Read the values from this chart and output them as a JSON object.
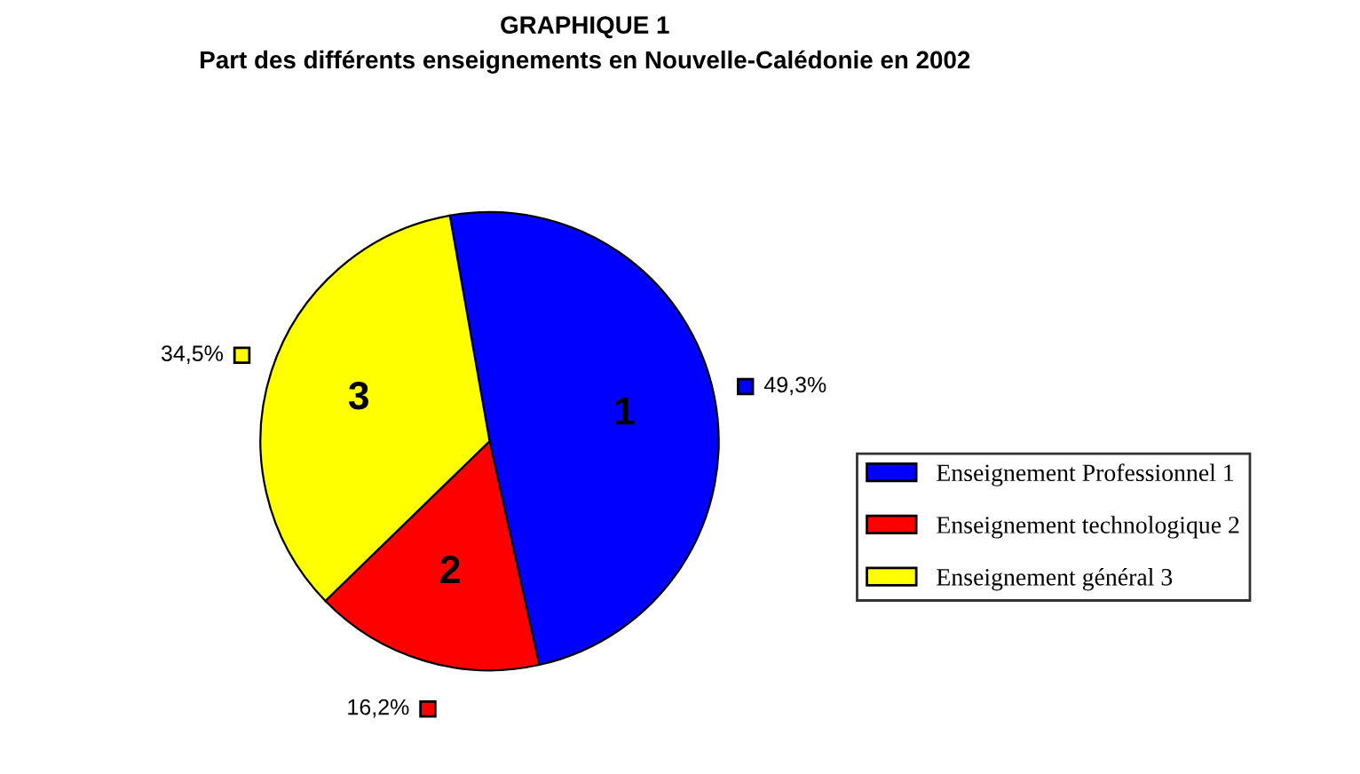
{
  "chart_data": {
    "type": "pie",
    "title": "GRAPHIQUE 1",
    "subtitle": "Part des différents enseignements en Nouvelle-Calédonie en 2002",
    "categories": [
      "Enseignement Professionnel 1",
      "Enseignement technologique 2",
      "Enseignement général 3"
    ],
    "values": [
      49.3,
      16.2,
      34.5
    ],
    "colors": [
      "#0000ff",
      "#ff0000",
      "#ffff00"
    ],
    "value_labels": [
      "49,3%",
      "16,2%",
      "34,5%"
    ],
    "annotations": [
      {
        "text": "1",
        "x": "Enseignement Professionnel 1"
      },
      {
        "text": "2",
        "x": "Enseignement technologique 2"
      },
      {
        "text": "3",
        "x": "Enseignement général 3"
      }
    ],
    "legend": "right"
  }
}
